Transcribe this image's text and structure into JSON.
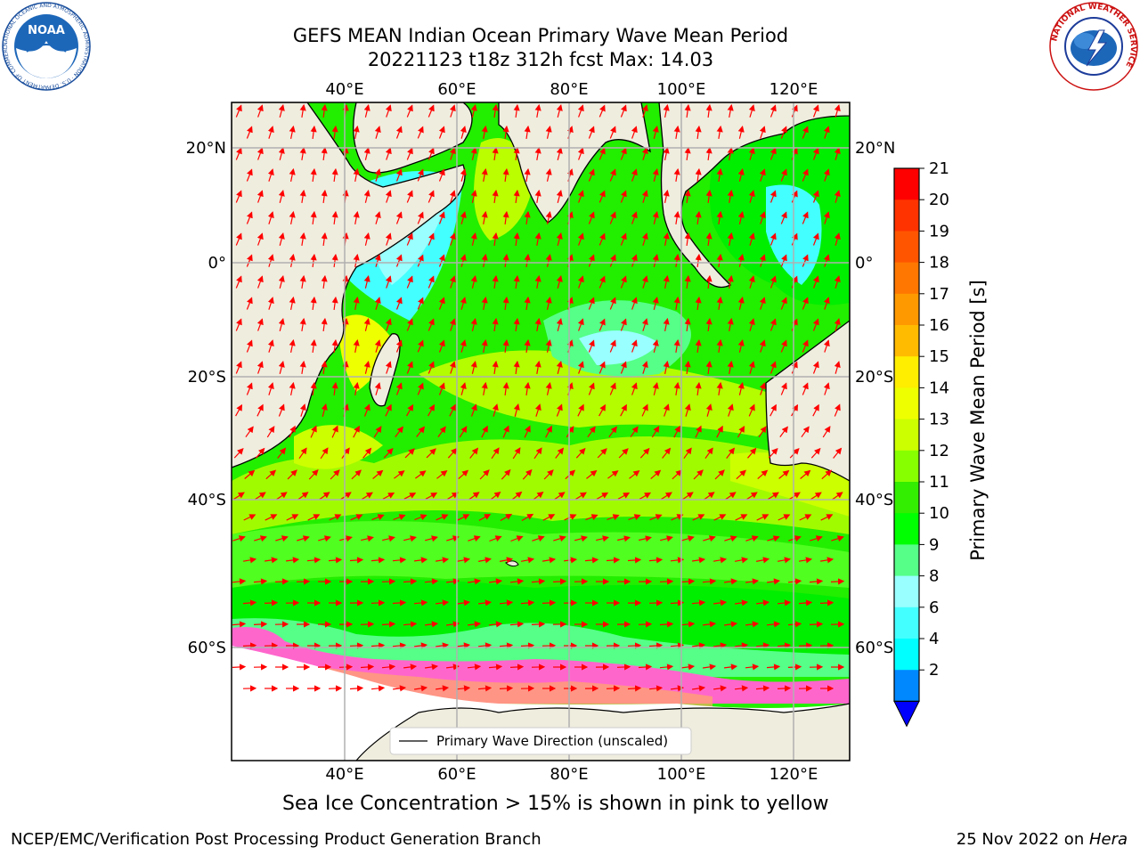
{
  "title": {
    "line1": "GEFS MEAN Indian Ocean Primary Wave Mean Period",
    "line2": "20221123 t18z 312h fcst   Max: 14.03"
  },
  "map": {
    "lon_ticks": [
      "40°E",
      "60°E",
      "80°E",
      "100°E",
      "120°E"
    ],
    "lat_ticks": [
      "20°N",
      "0°",
      "20°S",
      "40°S",
      "60°S"
    ],
    "legend_label": "Primary Wave Direction (unscaled)",
    "colors": {
      "land": "#efedde",
      "arrow": "#ff0000",
      "ice_land": "#ffffff"
    }
  },
  "colorbar": {
    "label": "Primary Wave Mean Period [s]",
    "ticks": [
      "21",
      "20",
      "19",
      "18",
      "17",
      "16",
      "15",
      "14",
      "13",
      "12",
      "11",
      "10",
      "9",
      "8",
      "6",
      "4",
      "2"
    ],
    "colors": [
      "#ff0000",
      "#ff3300",
      "#ff5500",
      "#ff7700",
      "#ff9900",
      "#ffbb00",
      "#ffee00",
      "#eeff00",
      "#ccff00",
      "#88ff00",
      "#33ee00",
      "#00ff00",
      "#55ff88",
      "#99ffff",
      "#44ffff",
      "#00ffff",
      "#0088ff",
      "#0000ff"
    ]
  },
  "caption": "Sea Ice Concentration > 15% is shown in pink to yellow",
  "footer": {
    "left": "NCEP/EMC/Verification Post Processing Product Generation Branch",
    "right_prefix": "25 Nov 2022 on ",
    "right_host": "Hera"
  },
  "logos": {
    "noaa": "NOAA",
    "noaa_ring": "NATIONAL OCEANIC AND ATMOSPHERIC ADMINISTRATION · U.S. DEPARTMENT OF COMMERCE",
    "nws_ring": "NATIONAL WEATHER SERVICE"
  }
}
